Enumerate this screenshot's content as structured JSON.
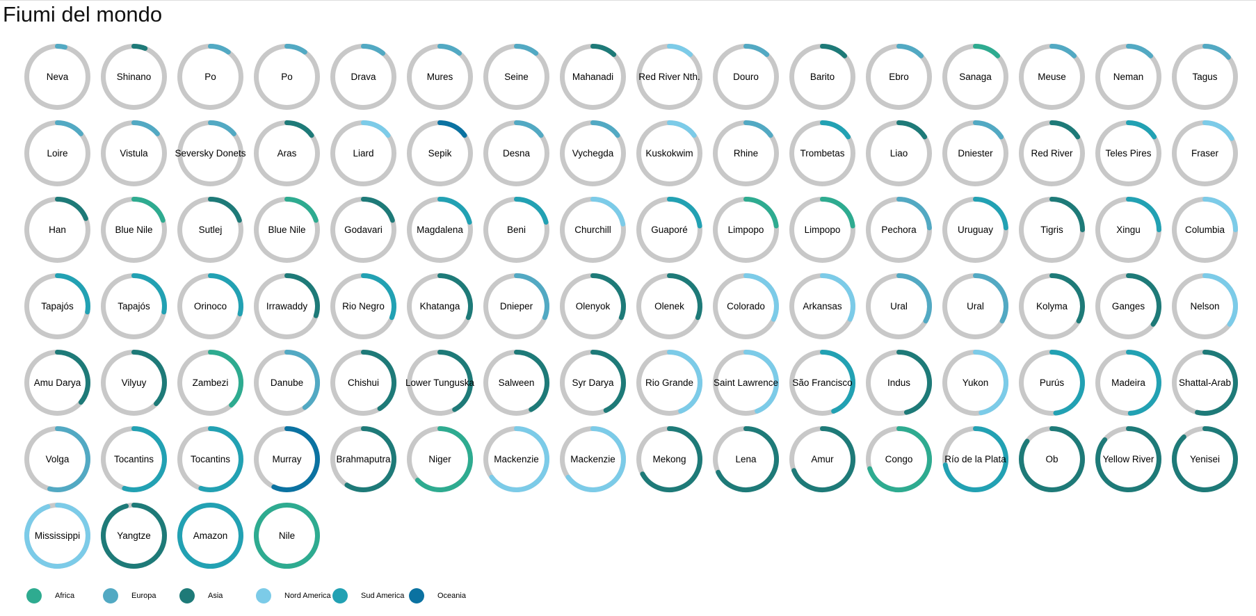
{
  "chart_data": {
    "type": "donut-grid",
    "title": "Fiumi del mondo",
    "legend": {
      "position": "bottom-left",
      "entries": [
        {
          "label": "Africa",
          "color": "#2eab90"
        },
        {
          "label": "Europa",
          "color": "#52a9c3"
        },
        {
          "label": "Asia",
          "color": "#1e7a78"
        },
        {
          "label": "Nord America",
          "color": "#7ccbe8"
        },
        {
          "label": "Sud America",
          "color": "#22a1b3"
        },
        {
          "label": "Oceania",
          "color": "#0b72a1"
        }
      ]
    },
    "track_color": "#c8c8c8",
    "series": [
      {
        "name": "Neva",
        "continent": "Europa",
        "fraction": 0.04
      },
      {
        "name": "Shinano",
        "continent": "Asia",
        "fraction": 0.06
      },
      {
        "name": "Po",
        "continent": "Europa",
        "fraction": 0.1
      },
      {
        "name": "Po",
        "continent": "Europa",
        "fraction": 0.1
      },
      {
        "name": "Drava",
        "continent": "Europa",
        "fraction": 0.11
      },
      {
        "name": "Mures",
        "continent": "Europa",
        "fraction": 0.11
      },
      {
        "name": "Seine",
        "continent": "Europa",
        "fraction": 0.11
      },
      {
        "name": "Mahanadi",
        "continent": "Asia",
        "fraction": 0.12
      },
      {
        "name": "Red River Nth.",
        "continent": "Nord America",
        "fraction": 0.12
      },
      {
        "name": "Douro",
        "continent": "Europa",
        "fraction": 0.12
      },
      {
        "name": "Barito",
        "continent": "Asia",
        "fraction": 0.13
      },
      {
        "name": "Ebro",
        "continent": "Europa",
        "fraction": 0.13
      },
      {
        "name": "Sanaga",
        "continent": "Africa",
        "fraction": 0.13
      },
      {
        "name": "Meuse",
        "continent": "Europa",
        "fraction": 0.13
      },
      {
        "name": "Neman",
        "continent": "Europa",
        "fraction": 0.13
      },
      {
        "name": "Tagus",
        "continent": "Europa",
        "fraction": 0.14
      },
      {
        "name": "Loire",
        "continent": "Europa",
        "fraction": 0.14
      },
      {
        "name": "Vistula",
        "continent": "Europa",
        "fraction": 0.14
      },
      {
        "name": "Seversky Donets",
        "continent": "Europa",
        "fraction": 0.14
      },
      {
        "name": "Aras",
        "continent": "Asia",
        "fraction": 0.15
      },
      {
        "name": "Liard",
        "continent": "Nord America",
        "fraction": 0.15
      },
      {
        "name": "Sepik",
        "continent": "Oceania",
        "fraction": 0.15
      },
      {
        "name": "Desna",
        "continent": "Europa",
        "fraction": 0.15
      },
      {
        "name": "Vychegda",
        "continent": "Europa",
        "fraction": 0.15
      },
      {
        "name": "Kuskokwim",
        "continent": "Nord America",
        "fraction": 0.15
      },
      {
        "name": "Rhine",
        "continent": "Europa",
        "fraction": 0.15
      },
      {
        "name": "Trombetas",
        "continent": "Sud America",
        "fraction": 0.16
      },
      {
        "name": "Liao",
        "continent": "Asia",
        "fraction": 0.16
      },
      {
        "name": "Dniester",
        "continent": "Europa",
        "fraction": 0.16
      },
      {
        "name": "Red River",
        "continent": "Asia",
        "fraction": 0.16
      },
      {
        "name": "Teles Pires",
        "continent": "Sud America",
        "fraction": 0.16
      },
      {
        "name": "Fraser",
        "continent": "Nord America",
        "fraction": 0.17
      },
      {
        "name": "Han",
        "continent": "Asia",
        "fraction": 0.19
      },
      {
        "name": "Blue Nile",
        "continent": "Africa",
        "fraction": 0.2
      },
      {
        "name": "Sutlej",
        "continent": "Asia",
        "fraction": 0.2
      },
      {
        "name": "Blue Nile",
        "continent": "Africa",
        "fraction": 0.2
      },
      {
        "name": "Godavari",
        "continent": "Asia",
        "fraction": 0.2
      },
      {
        "name": "Magdalena",
        "continent": "Sud America",
        "fraction": 0.21
      },
      {
        "name": "Beni",
        "continent": "Sud America",
        "fraction": 0.21
      },
      {
        "name": "Churchill",
        "continent": "Nord America",
        "fraction": 0.22
      },
      {
        "name": "Guaporé",
        "continent": "Sud America",
        "fraction": 0.23
      },
      {
        "name": "Limpopo",
        "continent": "Africa",
        "fraction": 0.23
      },
      {
        "name": "Limpopo",
        "continent": "Africa",
        "fraction": 0.23
      },
      {
        "name": "Pechora",
        "continent": "Europa",
        "fraction": 0.24
      },
      {
        "name": "Uruguay",
        "continent": "Sud America",
        "fraction": 0.24
      },
      {
        "name": "Tigris",
        "continent": "Asia",
        "fraction": 0.25
      },
      {
        "name": "Xingu",
        "continent": "Sud America",
        "fraction": 0.25
      },
      {
        "name": "Columbia",
        "continent": "Nord America",
        "fraction": 0.25
      },
      {
        "name": "Tapajós",
        "continent": "Sud America",
        "fraction": 0.28
      },
      {
        "name": "Tapajós",
        "continent": "Sud America",
        "fraction": 0.28
      },
      {
        "name": "Orinoco",
        "continent": "Sud America",
        "fraction": 0.29
      },
      {
        "name": "Irrawaddy",
        "continent": "Asia",
        "fraction": 0.3
      },
      {
        "name": "Rio Negro",
        "continent": "Sud America",
        "fraction": 0.31
      },
      {
        "name": "Khatanga",
        "continent": "Asia",
        "fraction": 0.31
      },
      {
        "name": "Dnieper",
        "continent": "Europa",
        "fraction": 0.31
      },
      {
        "name": "Olenyok",
        "continent": "Asia",
        "fraction": 0.31
      },
      {
        "name": "Olenek",
        "continent": "Asia",
        "fraction": 0.31
      },
      {
        "name": "Colorado",
        "continent": "Nord America",
        "fraction": 0.32
      },
      {
        "name": "Arkansas",
        "continent": "Nord America",
        "fraction": 0.32
      },
      {
        "name": "Ural",
        "continent": "Europa",
        "fraction": 0.33
      },
      {
        "name": "Ural",
        "continent": "Europa",
        "fraction": 0.33
      },
      {
        "name": "Kolyma",
        "continent": "Asia",
        "fraction": 0.33
      },
      {
        "name": "Ganges",
        "continent": "Asia",
        "fraction": 0.35
      },
      {
        "name": "Nelson",
        "continent": "Nord America",
        "fraction": 0.35
      },
      {
        "name": "Amu Darya",
        "continent": "Asia",
        "fraction": 0.36
      },
      {
        "name": "Vilyuy",
        "continent": "Asia",
        "fraction": 0.37
      },
      {
        "name": "Zambezi",
        "continent": "Africa",
        "fraction": 0.38
      },
      {
        "name": "Danube",
        "continent": "Europa",
        "fraction": 0.4
      },
      {
        "name": "Chishui",
        "continent": "Asia",
        "fraction": 0.41
      },
      {
        "name": "Lower Tunguska",
        "continent": "Asia",
        "fraction": 0.42
      },
      {
        "name": "Salween",
        "continent": "Asia",
        "fraction": 0.42
      },
      {
        "name": "Syr Darya",
        "continent": "Asia",
        "fraction": 0.43
      },
      {
        "name": "Rio Grande",
        "continent": "Nord America",
        "fraction": 0.44
      },
      {
        "name": "Saint Lawrence",
        "continent": "Nord America",
        "fraction": 0.44
      },
      {
        "name": "São Francisco",
        "continent": "Sud America",
        "fraction": 0.44
      },
      {
        "name": "Indus",
        "continent": "Asia",
        "fraction": 0.46
      },
      {
        "name": "Yukon",
        "continent": "Nord America",
        "fraction": 0.47
      },
      {
        "name": "Purús",
        "continent": "Sud America",
        "fraction": 0.48
      },
      {
        "name": "Madeira",
        "continent": "Sud America",
        "fraction": 0.49
      },
      {
        "name": "Shattal-Arab",
        "continent": "Asia",
        "fraction": 0.54
      },
      {
        "name": "Volga",
        "continent": "Europa",
        "fraction": 0.54
      },
      {
        "name": "Tocantins",
        "continent": "Sud America",
        "fraction": 0.55
      },
      {
        "name": "Tocantins",
        "continent": "Sud America",
        "fraction": 0.55
      },
      {
        "name": "Murray",
        "continent": "Oceania",
        "fraction": 0.57
      },
      {
        "name": "Brahmaputra",
        "continent": "Asia",
        "fraction": 0.59
      },
      {
        "name": "Niger",
        "continent": "Africa",
        "fraction": 0.63
      },
      {
        "name": "Mackenzie",
        "continent": "Nord America",
        "fraction": 0.65
      },
      {
        "name": "Mackenzie",
        "continent": "Nord America",
        "fraction": 0.65
      },
      {
        "name": "Mekong",
        "continent": "Asia",
        "fraction": 0.67
      },
      {
        "name": "Lena",
        "continent": "Asia",
        "fraction": 0.68
      },
      {
        "name": "Amur",
        "continent": "Asia",
        "fraction": 0.69
      },
      {
        "name": "Congo",
        "continent": "Africa",
        "fraction": 0.7
      },
      {
        "name": "Río de la Plata",
        "continent": "Sud America",
        "fraction": 0.72
      },
      {
        "name": "Ob",
        "continent": "Asia",
        "fraction": 0.85
      },
      {
        "name": "Yellow River",
        "continent": "Asia",
        "fraction": 0.86
      },
      {
        "name": "Yenisei",
        "continent": "Asia",
        "fraction": 0.88
      },
      {
        "name": "Mississippi",
        "continent": "Nord America",
        "fraction": 0.95
      },
      {
        "name": "Yangtze",
        "continent": "Asia",
        "fraction": 0.96
      },
      {
        "name": "Amazon",
        "continent": "Sud America",
        "fraction": 1.0
      },
      {
        "name": "Nile",
        "continent": "Africa",
        "fraction": 1.0
      }
    ]
  }
}
